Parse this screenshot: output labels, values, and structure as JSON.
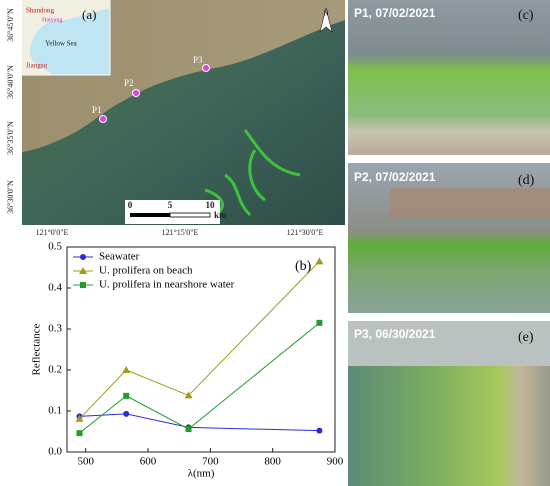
{
  "map": {
    "panel": "(a)",
    "inset": [
      "Shandong",
      "Haiyang",
      "Yellow Sea",
      "Jiangsu"
    ],
    "north": "N",
    "points": [
      "P1",
      "P2",
      "P3"
    ],
    "scale": [
      "0",
      "5",
      "10",
      "km"
    ],
    "lat_labels": [
      "36°45'0\"N",
      "36°40'0\"N",
      "36°35'0\"N",
      "36°30'0\"N"
    ],
    "lon_labels": [
      "121°0'0\"E",
      "121°15'0\"E",
      "121°30'0\"E"
    ]
  },
  "photos": [
    {
      "caption": "P1, 07/02/2021",
      "panel": "(c)"
    },
    {
      "caption": "P2, 07/02/2021",
      "panel": "(d)"
    },
    {
      "caption": "P3, 06/30/2021",
      "panel": "(e)"
    }
  ],
  "chart_data": {
    "type": "line",
    "annotation": "(b)",
    "x_label": "λ(nm)",
    "y_label": "Reflectance",
    "x": [
      490,
      565,
      665,
      875
    ],
    "series": [
      {
        "name": "Seawater",
        "color": "#2b2bd6",
        "marker": "circle",
        "values": [
          0.087,
          0.093,
          0.06,
          0.052
        ]
      },
      {
        "name": "U. prolifera on beach",
        "color": "#a39a1c",
        "marker": "triangle",
        "values": [
          0.081,
          0.2,
          0.138,
          0.465
        ]
      },
      {
        "name": "U. prolifera  in nearshore water",
        "color": "#1f9e2c",
        "marker": "square",
        "values": [
          0.046,
          0.137,
          0.056,
          0.315
        ]
      }
    ],
    "xlim": [
      470,
      900
    ],
    "xticks": [
      500,
      600,
      700,
      800,
      900
    ],
    "ylim": [
      0,
      0.5
    ],
    "yticks": [
      {
        "value": 0,
        "label": "0.0"
      },
      0.1,
      0.2,
      0.3,
      0.4,
      0.5
    ]
  }
}
